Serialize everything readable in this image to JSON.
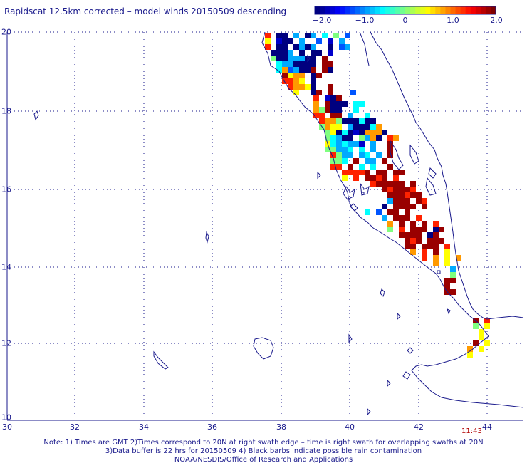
{
  "title": "Rapidscat 12.5km corrected – model winds 20150509 descending",
  "colorbar": {
    "ticks": [
      "−2.0",
      "−1.0",
      "0",
      "1.0",
      "2.0"
    ],
    "colors": [
      "#00007f",
      "#0000ff",
      "#007fff",
      "#00ffff",
      "#7fff7f",
      "#ffff00",
      "#ff7f00",
      "#ff0000",
      "#7f0000"
    ],
    "range": [
      -2.0,
      2.0
    ]
  },
  "map": {
    "lon_range": [
      30,
      45
    ],
    "lat_range": [
      10,
      20
    ],
    "lon_labels": [
      "30",
      "32",
      "34",
      "36",
      "38",
      "40",
      "42",
      "44"
    ],
    "lat_labels": [
      "20",
      "18",
      "16",
      "14",
      "12",
      "10"
    ],
    "grid": "dotted",
    "coastline_color": "#1a1a8c"
  },
  "time_label": "11:43",
  "notes": [
    "Note: 1) Times are GMT 2)Times correspond to 20N at right swath edge – time is right swath for overlapping swaths at 20N",
    "3)Data buffer is 22 hrs for 20150509 4) Black barbs indicate possible rain contamination",
    "NOAA/NESDIS/Office of Research and Applications"
  ]
}
